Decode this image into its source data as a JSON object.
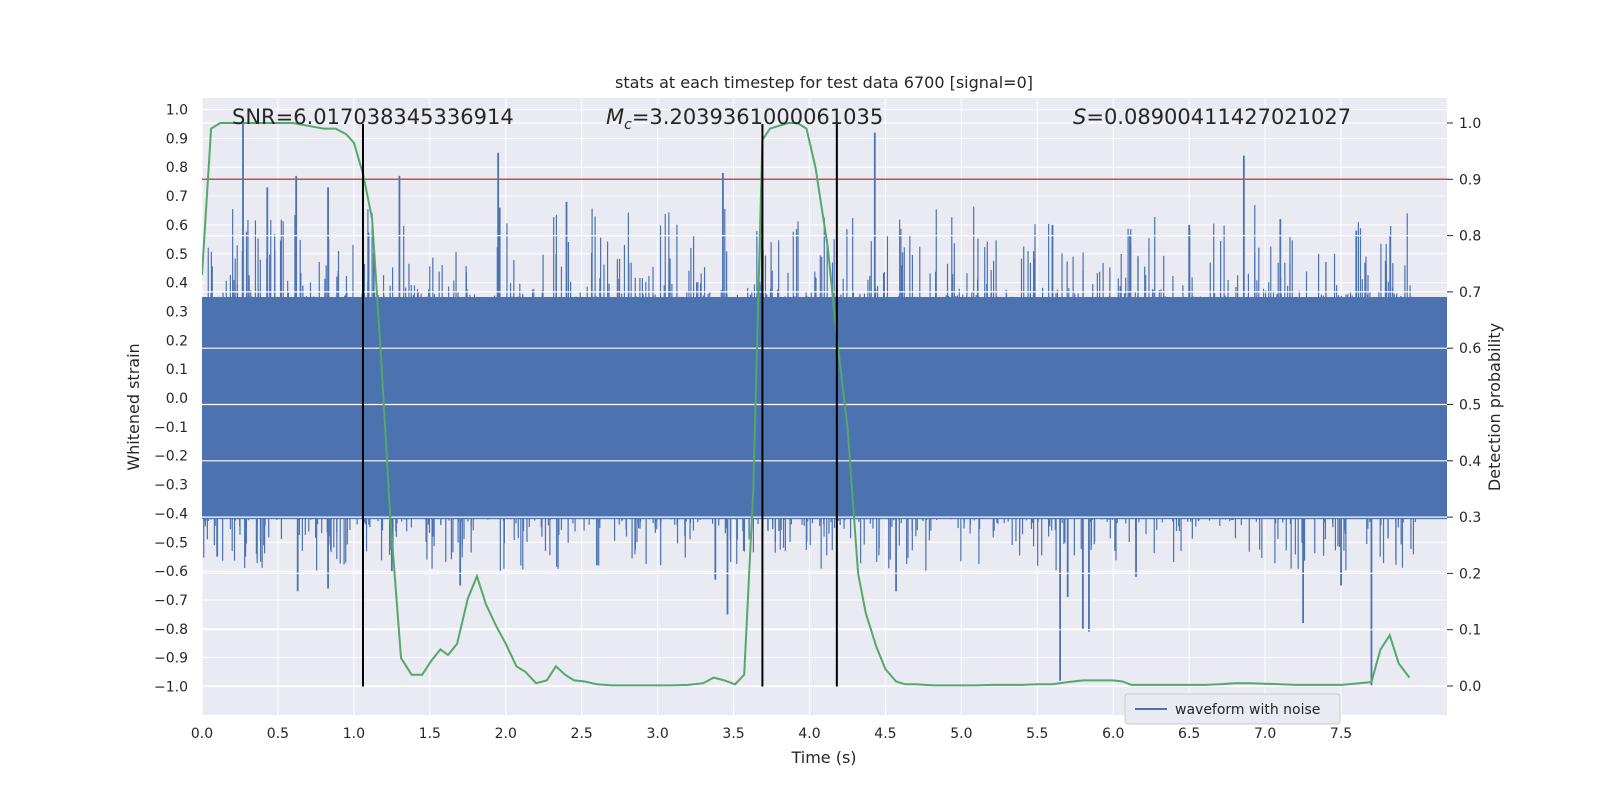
{
  "chart_data": {
    "type": "line",
    "title": "stats at each timestep for test data 6700 [signal=0]",
    "xlabel": "Time (s)",
    "ylabel": "Whitened strain",
    "ylabel_right": "Detection probability",
    "xlim": [
      0.0,
      8.0
    ],
    "ylim": [
      -1.1,
      1.05
    ],
    "ylim_right": [
      -0.05,
      1.05
    ],
    "x_ticks": [
      0.0,
      0.5,
      1.0,
      1.5,
      2.0,
      2.5,
      3.0,
      3.5,
      4.0,
      4.5,
      5.0,
      5.5,
      6.0,
      6.5,
      7.0,
      7.5
    ],
    "x_tick_labels": [
      "0.0",
      "0.5",
      "1.0",
      "1.5",
      "2.0",
      "2.5",
      "3.0",
      "3.5",
      "4.0",
      "4.5",
      "5.0",
      "5.5",
      "6.0",
      "6.5",
      "7.0",
      "7.5"
    ],
    "y_ticks": [
      1.0,
      0.9,
      0.8,
      0.7,
      0.6,
      0.5,
      0.4,
      0.3,
      0.2,
      0.1,
      0.0,
      -0.1,
      -0.2,
      -0.3,
      -0.4,
      -0.5,
      -0.6,
      -0.7,
      -0.8,
      -0.9,
      -1.0
    ],
    "y_tick_labels": [
      "1.0",
      "0.9",
      "0.8",
      "0.7",
      "0.6",
      "0.5",
      "0.4",
      "0.3",
      "0.2",
      "0.1",
      "0.0",
      "−0.1",
      "−0.2",
      "−0.3",
      "−0.4",
      "−0.5",
      "−0.6",
      "−0.7",
      "−0.8",
      "−0.9",
      "−1.0"
    ],
    "y_right_ticks": [
      1.0,
      0.9,
      0.8,
      0.7,
      0.6,
      0.5,
      0.4,
      0.3,
      0.2,
      0.1,
      0.0
    ],
    "y_right_tick_labels": [
      "1.0",
      "0.9",
      "0.8",
      "0.7",
      "0.6",
      "0.5",
      "0.4",
      "0.3",
      "0.2",
      "0.1",
      "0.0"
    ],
    "annotations": {
      "snr": "SNR=6.017038345336914",
      "mc_symbol": "M",
      "mc_sub": "c",
      "mc_value": "=3.2039361000061035",
      "s_symbol": "S",
      "s_value": "=0.08900411427021027"
    },
    "threshold": {
      "value": 0.9,
      "axis": "right",
      "color": "#c44e52"
    },
    "vertical_lines": [
      1.06,
      3.69,
      4.18
    ],
    "waveform_noise": {
      "name": "waveform with noise",
      "color": "#4c72b0",
      "band_low": -0.42,
      "band_high": 0.35,
      "spikes": [
        {
          "t": 0.27,
          "v": 0.97
        },
        {
          "t": 0.43,
          "v": 0.73
        },
        {
          "t": 0.62,
          "v": 0.77
        },
        {
          "t": 0.83,
          "v": 0.73
        },
        {
          "t": 1.3,
          "v": 0.77
        },
        {
          "t": 1.95,
          "v": 0.85
        },
        {
          "t": 3.43,
          "v": 0.78
        },
        {
          "t": 4.43,
          "v": 0.92
        },
        {
          "t": 6.86,
          "v": 0.84
        },
        {
          "t": 1.96,
          "v": 0.66
        },
        {
          "t": 2.4,
          "v": 0.68
        },
        {
          "t": 5.6,
          "v": 0.6
        },
        {
          "t": 6.5,
          "v": 0.6
        },
        {
          "t": 7.1,
          "v": 0.62
        },
        {
          "t": 7.6,
          "v": 0.58
        },
        {
          "t": 0.1,
          "v": -0.55
        },
        {
          "t": 0.63,
          "v": -0.67
        },
        {
          "t": 0.83,
          "v": -0.66
        },
        {
          "t": 1.25,
          "v": -0.6
        },
        {
          "t": 1.7,
          "v": -0.65
        },
        {
          "t": 3.38,
          "v": -0.63
        },
        {
          "t": 3.46,
          "v": -0.75
        },
        {
          "t": 5.65,
          "v": -0.98
        },
        {
          "t": 5.7,
          "v": -0.69
        },
        {
          "t": 5.8,
          "v": -0.8
        },
        {
          "t": 5.84,
          "v": -0.81
        },
        {
          "t": 7.25,
          "v": -0.78
        },
        {
          "t": 7.5,
          "v": -0.65
        },
        {
          "t": 7.7,
          "v": -1.0
        },
        {
          "t": 4.57,
          "v": -0.67
        },
        {
          "t": 6.15,
          "v": -0.62
        },
        {
          "t": 2.6,
          "v": -0.58
        }
      ]
    },
    "detection_probability": {
      "color": "#55a868",
      "x": [
        0.0,
        0.06,
        0.12,
        0.2,
        0.3,
        0.4,
        0.5,
        0.6,
        0.7,
        0.8,
        0.88,
        0.95,
        1.0,
        1.06,
        1.12,
        1.18,
        1.24,
        1.31,
        1.38,
        1.45,
        1.51,
        1.57,
        1.62,
        1.68,
        1.75,
        1.81,
        1.87,
        1.94,
        2.0,
        2.07,
        2.13,
        2.2,
        2.27,
        2.33,
        2.39,
        2.45,
        2.52,
        2.6,
        2.7,
        2.8,
        2.9,
        3.0,
        3.1,
        3.2,
        3.3,
        3.37,
        3.44,
        3.51,
        3.57,
        3.63,
        3.69,
        3.74,
        3.8,
        3.86,
        3.92,
        3.98,
        4.04,
        4.12,
        4.18,
        4.25,
        4.32,
        4.37,
        4.44,
        4.5,
        4.57,
        4.63,
        4.7,
        4.76,
        4.82,
        4.9,
        5.0,
        5.1,
        5.2,
        5.3,
        5.4,
        5.5,
        5.6,
        5.7,
        5.8,
        5.9,
        6.0,
        6.06,
        6.12,
        6.2,
        6.3,
        6.4,
        6.5,
        6.6,
        6.7,
        6.8,
        6.9,
        7.0,
        7.1,
        7.2,
        7.3,
        7.4,
        7.5,
        7.55,
        7.62,
        7.7,
        7.76,
        7.82,
        7.88,
        7.95
      ],
      "y": [
        0.73,
        0.99,
        1.0,
        1.0,
        1.0,
        1.0,
        1.0,
        1.0,
        0.995,
        0.99,
        0.99,
        0.98,
        0.965,
        0.91,
        0.83,
        0.58,
        0.3,
        0.05,
        0.02,
        0.02,
        0.045,
        0.065,
        0.055,
        0.075,
        0.155,
        0.195,
        0.145,
        0.105,
        0.075,
        0.035,
        0.025,
        0.005,
        0.01,
        0.035,
        0.02,
        0.01,
        0.008,
        0.003,
        0.001,
        0.001,
        0.001,
        0.001,
        0.001,
        0.002,
        0.005,
        0.015,
        0.01,
        0.003,
        0.02,
        0.35,
        0.97,
        0.99,
        0.995,
        1.0,
        1.0,
        0.99,
        0.92,
        0.78,
        0.62,
        0.46,
        0.2,
        0.13,
        0.07,
        0.03,
        0.008,
        0.003,
        0.003,
        0.002,
        0.001,
        0.001,
        0.001,
        0.001,
        0.002,
        0.002,
        0.002,
        0.003,
        0.003,
        0.007,
        0.01,
        0.01,
        0.01,
        0.008,
        0.002,
        0.002,
        0.002,
        0.002,
        0.002,
        0.002,
        0.003,
        0.005,
        0.005,
        0.004,
        0.003,
        0.002,
        0.002,
        0.002,
        0.002,
        0.003,
        0.005,
        0.007,
        0.065,
        0.09,
        0.04,
        0.015
      ]
    },
    "legend": {
      "entries": [
        "waveform with noise"
      ],
      "position": "bottom-right"
    },
    "grid": true
  }
}
